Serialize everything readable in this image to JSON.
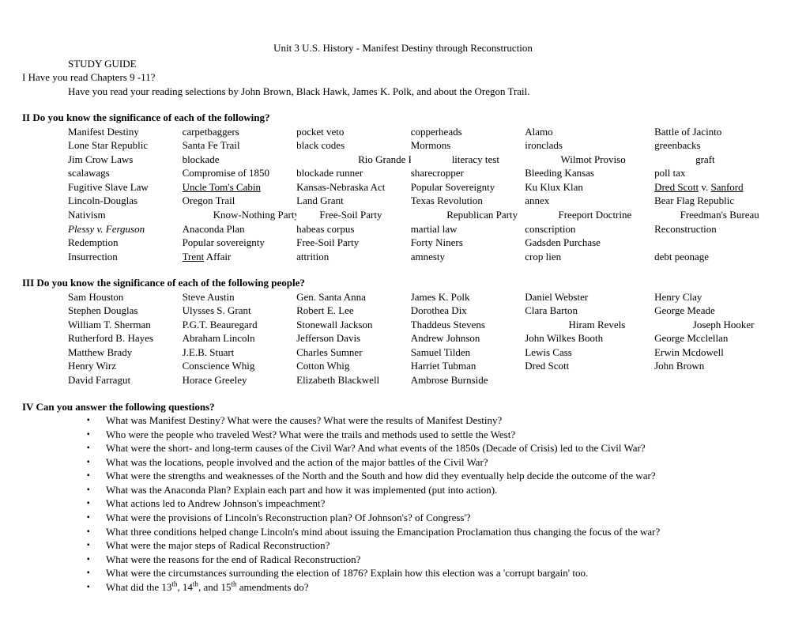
{
  "title": "Unit 3 U.S. History - Manifest Destiny through Reconstruction",
  "studyGuide": "STUDY GUIDE",
  "section1": {
    "line1": "I   Have you read Chapters 9 -11?",
    "line2": "Have you read your reading selections by John Brown, Black Hawk, James K. Polk, and about the Oregon Trail."
  },
  "section2": {
    "heading": "II  Do you know the significance of each of the following?",
    "rows": [
      [
        {
          "t": "Manifest Destiny"
        },
        {
          "t": "carpetbaggers"
        },
        {
          "t": "pocket veto"
        },
        {
          "t": "copperheads"
        },
        {
          "t": "Alamo"
        },
        {
          "t": "Battle of Jacinto"
        }
      ],
      [
        {
          "t": "Lone Star Republic"
        },
        {
          "t": "Santa Fe Trail"
        },
        {
          "t": "black codes"
        },
        {
          "t": "Mormons"
        },
        {
          "t": "ironclads"
        },
        {
          "t": "greenbacks"
        }
      ],
      [
        {
          "t": "Jim Crow Laws"
        },
        {
          "t": "blockade"
        },
        {
          "t": "                        Rio Grande River"
        },
        {
          "t": "                literacy test"
        },
        {
          "t": "              Wilmot Proviso"
        },
        {
          "t": "                graft"
        }
      ],
      [
        {
          "t": "scalawags"
        },
        {
          "t": "Compromise of 1850"
        },
        {
          "t": "blockade runner"
        },
        {
          "t": "sharecropper"
        },
        {
          "t": "Bleeding Kansas"
        },
        {
          "t": "poll tax"
        }
      ],
      [
        {
          "t": "Fugitive Slave Law"
        },
        {
          "t": "Uncle Tom's Cabin",
          "u": true
        },
        {
          "t": "Kansas-Nebraska Act"
        },
        {
          "t": "Popular Sovereignty"
        },
        {
          "t": "Ku Klux Klan"
        },
        {
          "t": "Dred Scott v. Sanford",
          "html": "<span class=\"underline\">Dred Scott</span> v. <span class=\"underline\">Sanford</span>"
        }
      ],
      [
        {
          "t": "Lincoln-Douglas"
        },
        {
          "t": "Oregon Trail"
        },
        {
          "t": "Land Grant"
        },
        {
          "t": "Texas Revolution"
        },
        {
          "t": "annex"
        },
        {
          "t": "Bear Flag Republic"
        }
      ],
      [
        {
          "t": "Nativism"
        },
        {
          "t": "            Know-Nothing Party"
        },
        {
          "t": "         Free-Soil Party"
        },
        {
          "t": "              Republican Party"
        },
        {
          "t": "             Freeport Doctrine"
        },
        {
          "t": "          Freedman's Bureau"
        }
      ],
      [
        {
          "t": "Plessy v. Ferguson",
          "i": true
        },
        {
          "t": "Anaconda Plan"
        },
        {
          "t": "habeas corpus"
        },
        {
          "t": "martial law"
        },
        {
          "t": "conscription"
        },
        {
          "t": "Reconstruction"
        }
      ],
      [
        {
          "t": "Redemption"
        },
        {
          "t": "Popular sovereignty"
        },
        {
          "t": "Free-Soil Party"
        },
        {
          "t": "Forty Niners"
        },
        {
          "t": "Gadsden Purchase"
        },
        {
          "t": ""
        }
      ],
      [
        {
          "t": "Insurrection"
        },
        {
          "t": "Trent Affair",
          "html": "<span class=\"underline\">Trent</span> Affair"
        },
        {
          "t": "attrition"
        },
        {
          "t": "amnesty"
        },
        {
          "t": "crop lien"
        },
        {
          "t": "debt peonage"
        }
      ]
    ]
  },
  "section3": {
    "heading": "III   Do you know the significance of each of the following people?",
    "rows": [
      [
        {
          "t": "Sam Houston"
        },
        {
          "t": "Steve Austin"
        },
        {
          "t": "Gen. Santa Anna"
        },
        {
          "t": "James K. Polk"
        },
        {
          "t": "Daniel Webster"
        },
        {
          "t": "Henry Clay"
        }
      ],
      [
        {
          "t": "Stephen Douglas"
        },
        {
          "t": "Ulysses S. Grant"
        },
        {
          "t": "Robert E. Lee"
        },
        {
          "t": "Dorothea Dix"
        },
        {
          "t": "Clara Barton"
        },
        {
          "t": "George Meade"
        }
      ],
      [
        {
          "t": "William T. Sherman"
        },
        {
          "t": "P.G.T. Beauregard"
        },
        {
          "t": "Stonewall Jackson"
        },
        {
          "t": "Thaddeus Stevens"
        },
        {
          "t": "                 Hiram Revels"
        },
        {
          "t": "               Joseph Hooker"
        }
      ],
      [
        {
          "t": "Rutherford B. Hayes"
        },
        {
          "t": "Abraham Lincoln"
        },
        {
          "t": "Jefferson Davis"
        },
        {
          "t": "Andrew Johnson"
        },
        {
          "t": "John Wilkes Booth"
        },
        {
          "t": "George Mcclellan"
        }
      ],
      [
        {
          "t": "Matthew Brady"
        },
        {
          "t": "J.E.B. Stuart"
        },
        {
          "t": "Charles Sumner"
        },
        {
          "t": "Samuel Tilden"
        },
        {
          "t": "Lewis Cass"
        },
        {
          "t": "Erwin Mcdowell"
        }
      ],
      [
        {
          "t": "Henry Wirz"
        },
        {
          "t": "Conscience Whig"
        },
        {
          "t": "Cotton Whig"
        },
        {
          "t": "Harriet Tubman"
        },
        {
          "t": "Dred Scott"
        },
        {
          "t": "John Brown"
        }
      ],
      [
        {
          "t": "David Farragut"
        },
        {
          "t": "Horace Greeley"
        },
        {
          "t": "Elizabeth Blackwell"
        },
        {
          "t": "Ambrose Burnside"
        },
        {
          "t": ""
        },
        {
          "t": ""
        }
      ]
    ]
  },
  "section4": {
    "heading": "IV  Can you answer the following questions?",
    "questions": [
      "What was Manifest Destiny?  What were the causes?  What were the results of Manifest Destiny?",
      "Who were the people who traveled West?  What were the trails and methods used to settle the West?",
      "What were the short- and long-term causes of the Civil War?  And what events of the 1850s (Decade of Crisis) led to the Civil War?",
      "What was the locations, people involved and the action of the major battles of the Civil War?",
      "What were the strengths and weaknesses of the North and the South and how did they eventually help decide the outcome of the war?",
      "What was the Anaconda Plan?  Explain each part and how it was implemented (put into action).",
      "What actions led to Andrew Johnson's impeachment?",
      "What were the provisions of Lincoln's Reconstruction plan? Of Johnson's? of Congress'?",
      "What three conditions helped change Lincoln's mind about issuing the Emancipation Proclamation thus changing the focus of the war?",
      "What were the major steps of Radical Reconstruction?",
      "What were the reasons for the end of Radical Reconstruction?",
      "What were the circumstances surrounding the election of 1876?  Explain how this election was a 'corrupt bargain' too.",
      "What did the 13<sup>th</sup>, 14<sup>th</sup>, and 15<sup>th</sup> amendments do?"
    ]
  }
}
